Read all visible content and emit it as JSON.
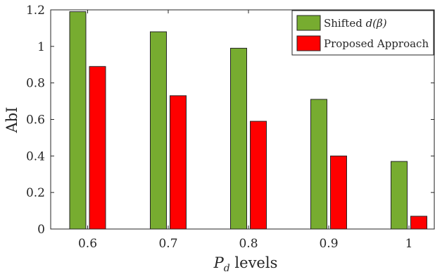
{
  "chart_data": {
    "type": "bar",
    "categories": [
      "0.6",
      "0.7",
      "0.8",
      "0.9",
      "1"
    ],
    "series": [
      {
        "name": "Shifted d(β)",
        "color": "#77ac30",
        "values": [
          1.19,
          1.08,
          0.99,
          0.71,
          0.37
        ]
      },
      {
        "name": "Proposed Approach",
        "color": "#ff0000",
        "values": [
          0.89,
          0.73,
          0.59,
          0.4,
          0.07
        ]
      }
    ],
    "xlabel_main": "P",
    "xlabel_sub": "d",
    "xlabel_rest": " levels",
    "ylabel": "AbI",
    "ylim": [
      0,
      1.2
    ],
    "yticks": [
      0,
      0.2,
      0.4,
      0.6,
      0.8,
      1,
      1.2
    ],
    "ytick_labels": [
      "0",
      "0.2",
      "0.4",
      "0.6",
      "0.8",
      "1",
      "1.2"
    ],
    "legend": {
      "position": "top-right",
      "shifted_prefix": "Shifted ",
      "shifted_math": "d(β)",
      "proposed_label": "Proposed Approach"
    },
    "grid": false
  }
}
